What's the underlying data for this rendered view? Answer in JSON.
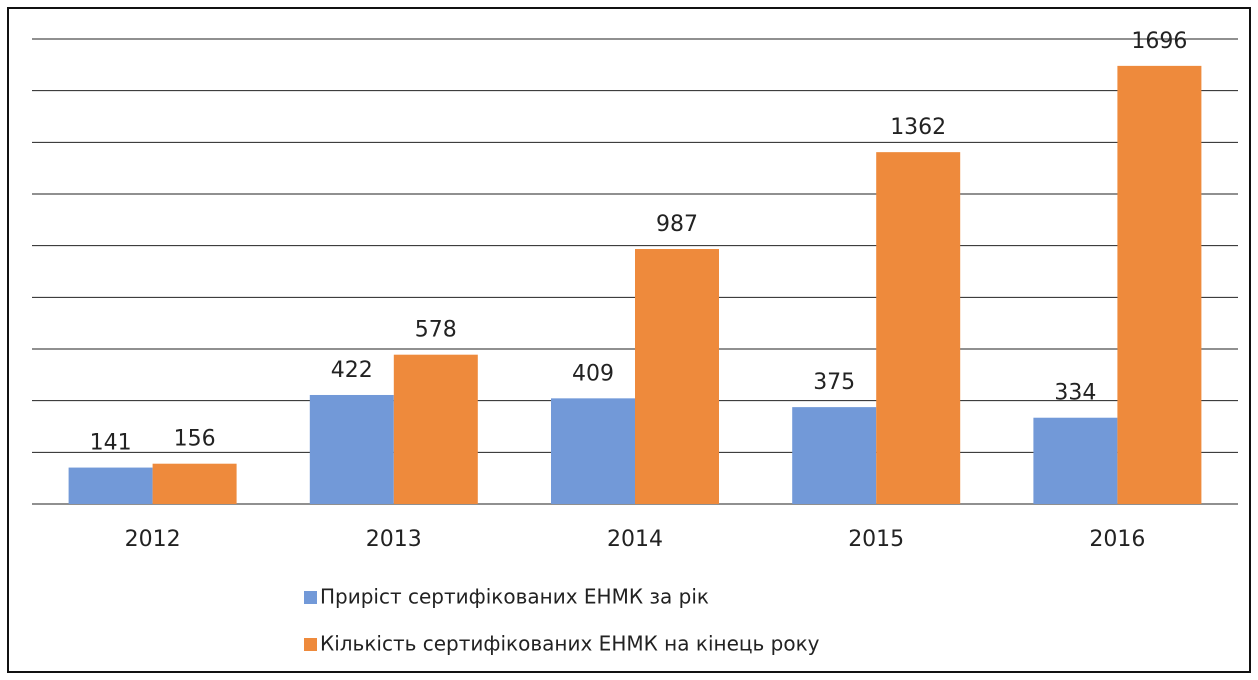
{
  "chart_data": {
    "type": "bar",
    "categories": [
      "2012",
      "2013",
      "2014",
      "2015",
      "2016"
    ],
    "series": [
      {
        "name": "Приріст сертифікованих ЕНМК за рік",
        "color": "#7299d8",
        "values": [
          141,
          422,
          409,
          375,
          334
        ]
      },
      {
        "name": "Кількість сертифікованих ЕНМК на кінець року",
        "color": "#ee8a3c",
        "values": [
          156,
          578,
          987,
          1362,
          1696
        ]
      }
    ],
    "ylim": [
      0,
      1800
    ],
    "yticks": [
      0,
      200,
      400,
      600,
      800,
      1000,
      1200,
      1400,
      1600,
      1800
    ],
    "grid": true,
    "legend": "bottom"
  }
}
